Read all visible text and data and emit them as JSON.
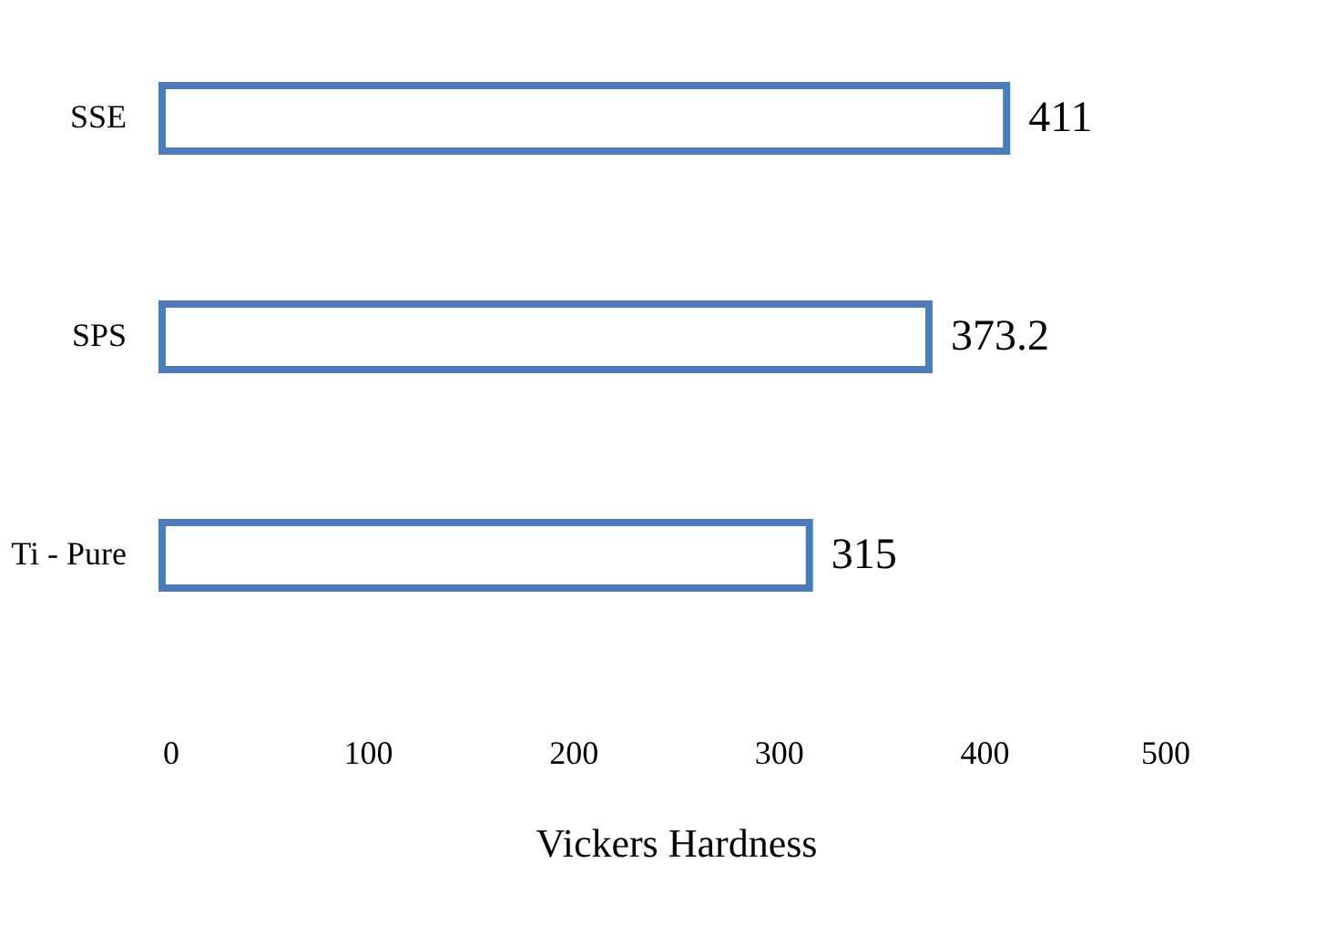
{
  "chart_data": {
    "type": "bar",
    "orientation": "horizontal",
    "categories": [
      "SSE",
      "SPS",
      "Ti - Pure"
    ],
    "values": [
      411,
      373.2,
      315
    ],
    "color": "#4a7ebb",
    "xlabel": "Vickers Hardness",
    "xlim": [
      0,
      500
    ],
    "xticks": [
      0,
      100,
      200,
      300,
      400,
      500
    ],
    "grid": false,
    "data_labels": true
  }
}
